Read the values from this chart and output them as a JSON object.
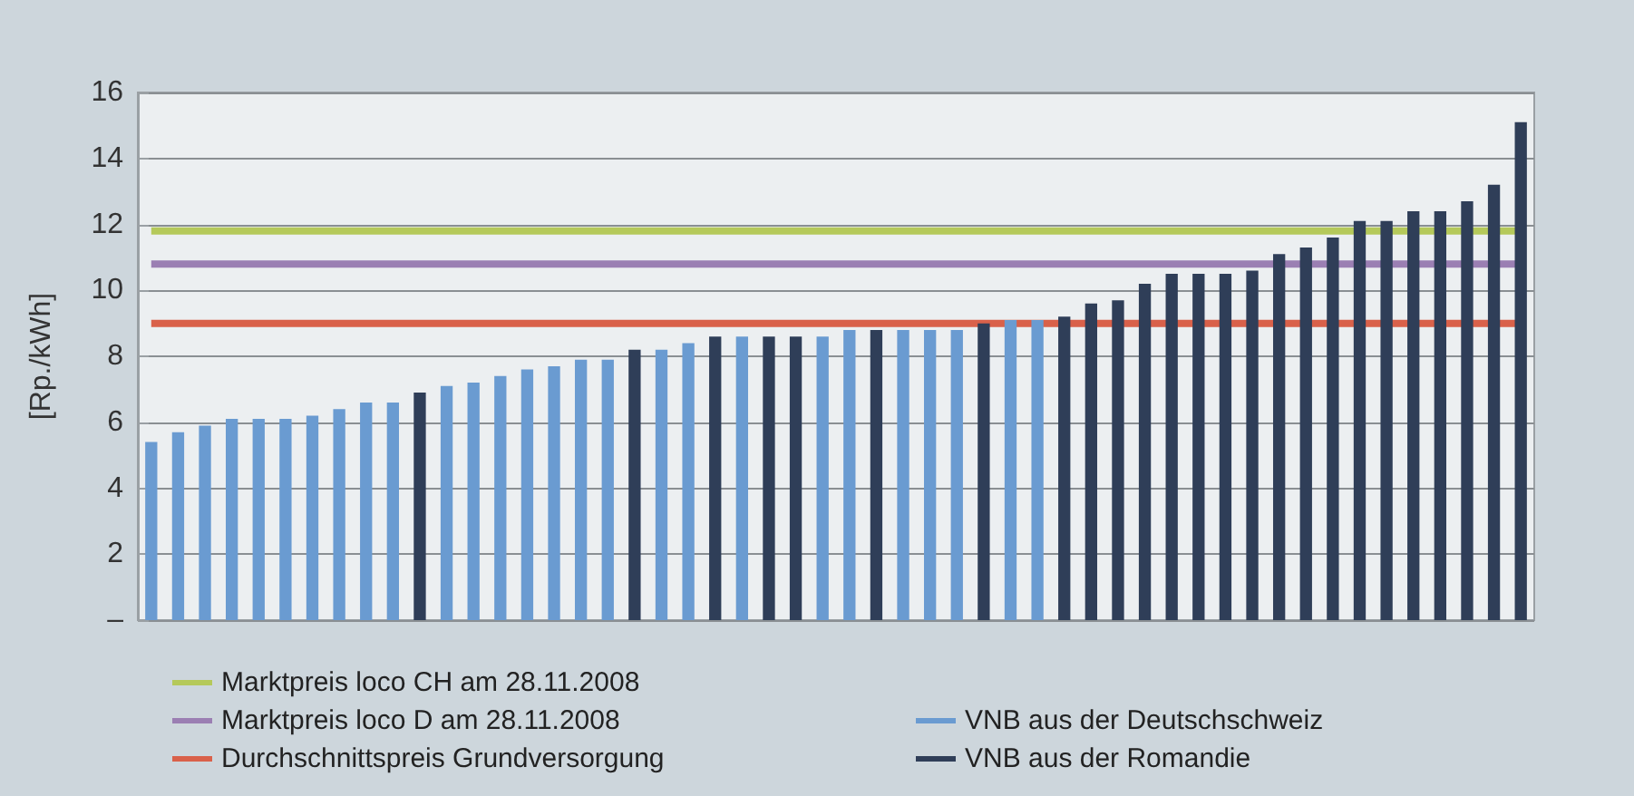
{
  "chart_data": {
    "type": "bar",
    "ylabel": "[Rp./kWh]",
    "categories": [
      null,
      null,
      null,
      null,
      null,
      null,
      null,
      null,
      null,
      null,
      null,
      null,
      null,
      null,
      null,
      null,
      null,
      null,
      null,
      null,
      null,
      null,
      null,
      null,
      null,
      null,
      null,
      null,
      null,
      null,
      null,
      null,
      null,
      null,
      null,
      null,
      null,
      null,
      null,
      null,
      null,
      null,
      null,
      null,
      null,
      null,
      null,
      null,
      null,
      null,
      null,
      null
    ],
    "series": [
      {
        "name": "Marktpreis loco CH am 28.11.2008",
        "type": "line",
        "color": "#b5c95a",
        "values": [
          11.8,
          11.8,
          11.8,
          11.8,
          11.8,
          11.8,
          11.8,
          11.8,
          11.8,
          11.8,
          11.8,
          11.8,
          11.8,
          11.8,
          11.8,
          11.8,
          11.8,
          11.8,
          11.8,
          11.8,
          11.8,
          11.8,
          11.8,
          11.8,
          11.8,
          11.8,
          11.8,
          11.8,
          11.8,
          11.8,
          11.8,
          11.8,
          11.8,
          11.8,
          11.8,
          11.8,
          11.8,
          11.8,
          11.8,
          11.8,
          11.8,
          11.8,
          11.8,
          11.8,
          11.8,
          11.8,
          11.8,
          11.8,
          11.8,
          11.8,
          11.8,
          11.8
        ]
      },
      {
        "name": "Marktpreis loco D am 28.11.2008",
        "type": "line",
        "color": "#9b7fb3",
        "values": [
          10.8,
          10.8,
          10.8,
          10.8,
          10.8,
          10.8,
          10.8,
          10.8,
          10.8,
          10.8,
          10.8,
          10.8,
          10.8,
          10.8,
          10.8,
          10.8,
          10.8,
          10.8,
          10.8,
          10.8,
          10.8,
          10.8,
          10.8,
          10.8,
          10.8,
          10.8,
          10.8,
          10.8,
          10.8,
          10.8,
          10.8,
          10.8,
          10.8,
          10.8,
          10.8,
          10.8,
          10.8,
          10.8,
          10.8,
          10.8,
          10.8,
          10.8,
          10.8,
          10.8,
          10.8,
          10.8,
          10.8,
          10.8,
          10.8,
          10.8,
          10.8,
          10.8
        ]
      },
      {
        "name": "Durchschnittspreis Grundversorgung",
        "type": "line",
        "color": "#d9614a",
        "values": [
          9.0,
          9.0,
          9.0,
          9.0,
          9.0,
          9.0,
          9.0,
          9.0,
          9.0,
          9.0,
          9.0,
          9.0,
          9.0,
          9.0,
          9.0,
          9.0,
          9.0,
          9.0,
          9.0,
          9.0,
          9.0,
          9.0,
          9.0,
          9.0,
          9.0,
          9.0,
          9.0,
          9.0,
          9.0,
          9.0,
          9.0,
          9.0,
          9.0,
          9.0,
          9.0,
          9.0,
          9.0,
          9.0,
          9.0,
          9.0,
          9.0,
          9.0,
          9.0,
          9.0,
          9.0,
          9.0,
          9.0,
          9.0,
          9.0,
          9.0,
          9.0,
          9.0
        ]
      },
      {
        "name": "VNB aus der Deutschschweiz",
        "color": "#6a9bd1",
        "values": [
          5.4,
          5.7,
          5.9,
          6.1,
          6.1,
          6.1,
          6.2,
          6.4,
          6.6,
          6.6,
          null,
          7.1,
          7.2,
          7.4,
          7.6,
          7.7,
          7.9,
          7.9,
          null,
          8.2,
          8.4,
          null,
          8.6,
          null,
          null,
          8.6,
          8.8,
          null,
          8.8,
          8.8,
          8.8,
          null,
          9.1,
          9.1,
          null,
          null,
          null,
          null,
          null,
          null,
          null,
          null,
          null,
          null,
          null,
          null,
          null,
          null,
          null,
          null,
          null,
          null
        ]
      },
      {
        "name": "VNB aus der Romandie",
        "color": "#2f3e58",
        "values": [
          null,
          null,
          null,
          null,
          null,
          null,
          null,
          null,
          null,
          null,
          6.9,
          null,
          null,
          null,
          null,
          null,
          null,
          null,
          8.2,
          null,
          null,
          8.6,
          null,
          8.6,
          8.6,
          null,
          null,
          8.8,
          null,
          null,
          null,
          9.0,
          null,
          null,
          9.2,
          9.6,
          9.7,
          10.2,
          10.5,
          10.5,
          10.5,
          10.6,
          11.1,
          11.3,
          11.6,
          12.1,
          12.1,
          12.4,
          12.4,
          12.7,
          13.2,
          15.1
        ]
      }
    ],
    "ylim": [
      0,
      16
    ],
    "yticks": [
      {
        "value": 0,
        "label": "–"
      },
      2,
      4,
      6,
      8,
      10,
      12,
      14,
      16
    ],
    "grid": "y",
    "legend": "bottom",
    "tick_labels": "y"
  }
}
